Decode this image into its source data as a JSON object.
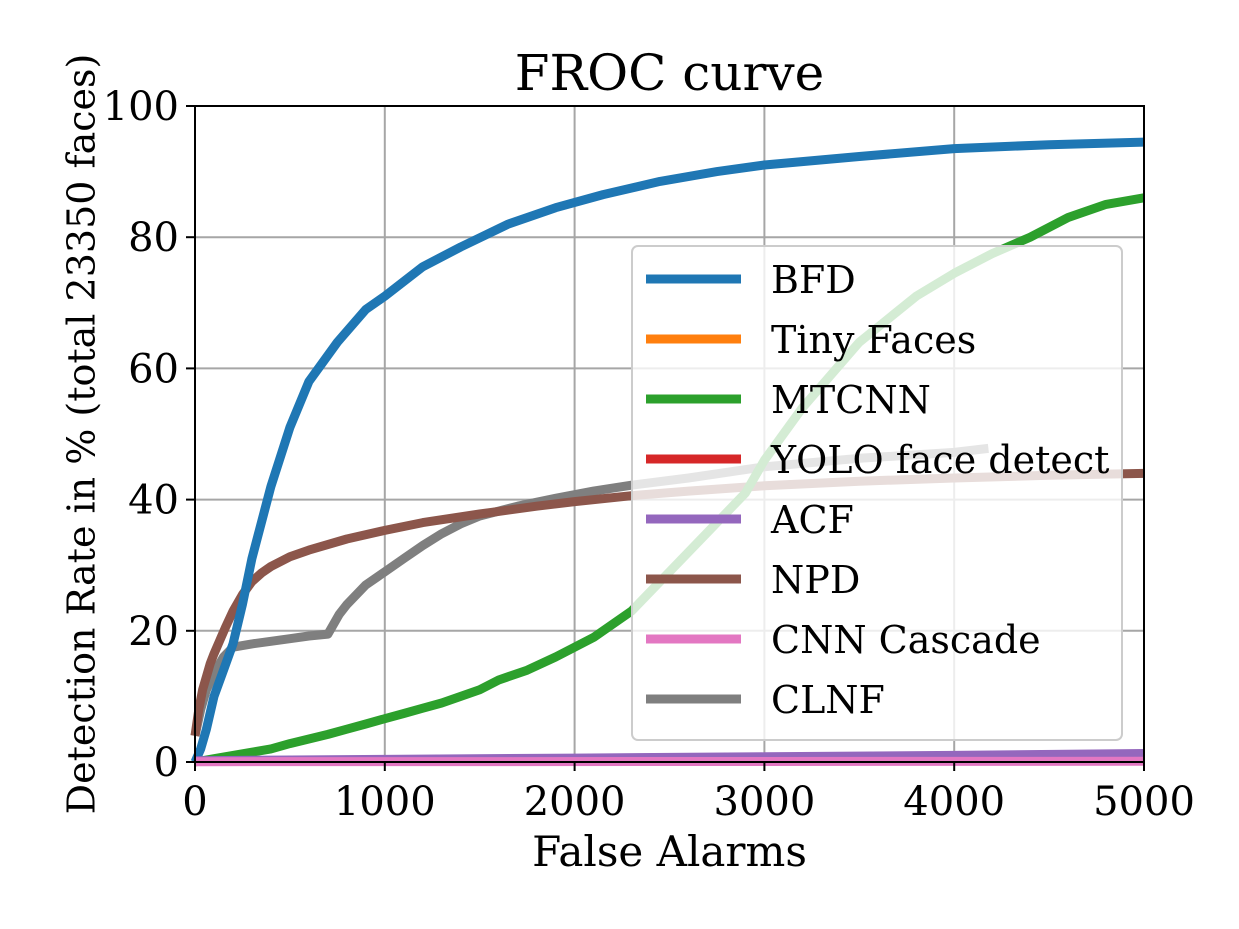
{
  "chart_data": {
    "type": "line",
    "title": "FROC curve",
    "xlabel": "False Alarms",
    "ylabel": "Detection Rate in % (total 23350 faces)",
    "xlim": [
      0,
      5000
    ],
    "ylim": [
      0,
      100
    ],
    "xticks": [
      0,
      1000,
      2000,
      3000,
      4000,
      5000
    ],
    "yticks": [
      0,
      20,
      40,
      60,
      80,
      100
    ],
    "xtick_labels": [
      "0",
      "1000",
      "2000",
      "3000",
      "4000",
      "5000"
    ],
    "ytick_labels": [
      "0",
      "20",
      "40",
      "60",
      "80",
      "100"
    ],
    "grid": true,
    "legend_position": "right",
    "series": [
      {
        "name": "BFD",
        "color": "#1f77b4",
        "x": [
          0,
          30,
          60,
          100,
          150,
          200,
          250,
          300,
          400,
          500,
          600,
          750,
          900,
          1000,
          1200,
          1400,
          1650,
          1900,
          2150,
          2450,
          2750,
          3000,
          3500,
          4000,
          4500,
          5000
        ],
        "y": [
          0,
          2,
          5,
          10,
          14,
          18,
          24,
          31,
          42,
          51,
          58,
          64,
          69,
          71,
          75.5,
          78.5,
          82,
          84.5,
          86.5,
          88.5,
          90,
          91,
          92.3,
          93.5,
          94.1,
          94.5
        ]
      },
      {
        "name": "Tiny Faces",
        "color": "#ff7f0e",
        "x": [],
        "y": []
      },
      {
        "name": "MTCNN",
        "color": "#2ca02c",
        "x": [
          0,
          100,
          200,
          300,
          400,
          500,
          600,
          700,
          800,
          900,
          1000,
          1100,
          1200,
          1300,
          1400,
          1500,
          1600,
          1750,
          1900,
          2100,
          2300,
          2500,
          2700,
          2900,
          3000,
          3200,
          3500,
          3800,
          4000,
          4200,
          4400,
          4600,
          4800,
          5000
        ],
        "y": [
          0,
          0.5,
          1,
          1.5,
          2,
          2.8,
          3.5,
          4.2,
          5,
          5.8,
          6.6,
          7.4,
          8.2,
          9,
          10,
          11,
          12.5,
          14,
          16,
          19,
          23,
          29,
          35,
          41,
          46,
          54,
          64,
          71,
          74.5,
          77.5,
          80,
          83,
          85,
          86
        ]
      },
      {
        "name": "YOLO face detect",
        "color": "#d62728",
        "x": [],
        "y": []
      },
      {
        "name": "ACF",
        "color": "#9467bd",
        "x": [
          0,
          1000,
          2000,
          3000,
          4000,
          5000
        ],
        "y": [
          0.2,
          0.4,
          0.6,
          0.8,
          1.0,
          1.3
        ]
      },
      {
        "name": "NPD",
        "color": "#8c564b",
        "x": [
          0,
          20,
          40,
          60,
          80,
          100,
          130,
          160,
          200,
          250,
          300,
          350,
          400,
          500,
          600,
          800,
          1000,
          1200,
          1500,
          1800,
          2000,
          2300,
          2600,
          3000,
          3500,
          4000,
          4500,
          5000
        ],
        "y": [
          4,
          8,
          11,
          13,
          15,
          16.5,
          18.5,
          20.5,
          23,
          25.5,
          27.5,
          28.8,
          29.8,
          31.3,
          32.3,
          34,
          35.3,
          36.5,
          37.8,
          39,
          39.7,
          40.6,
          41.3,
          42.1,
          42.8,
          43.3,
          43.7,
          44
        ]
      },
      {
        "name": "CNN Cascade",
        "color": "#e377c2",
        "x": [
          0,
          5000
        ],
        "y": [
          0.05,
          0.1
        ]
      },
      {
        "name": "CLNF",
        "color": "#7f7f7f",
        "x": [
          0,
          30,
          60,
          100,
          150,
          200,
          300,
          400,
          500,
          600,
          700,
          720,
          760,
          800,
          850,
          900,
          1000,
          1100,
          1200,
          1300,
          1400,
          1500,
          1700,
          1900,
          2100,
          2300,
          2600,
          3000,
          3500,
          4000,
          4180
        ],
        "y": [
          4,
          8,
          11,
          13.5,
          16,
          17.5,
          18,
          18.4,
          18.8,
          19.2,
          19.5,
          20.5,
          22.5,
          24,
          25.5,
          27,
          29,
          31,
          33,
          34.8,
          36.3,
          37.5,
          39,
          40.2,
          41.3,
          42.2,
          43.3,
          45,
          46.3,
          47.2,
          47.8
        ]
      }
    ]
  }
}
